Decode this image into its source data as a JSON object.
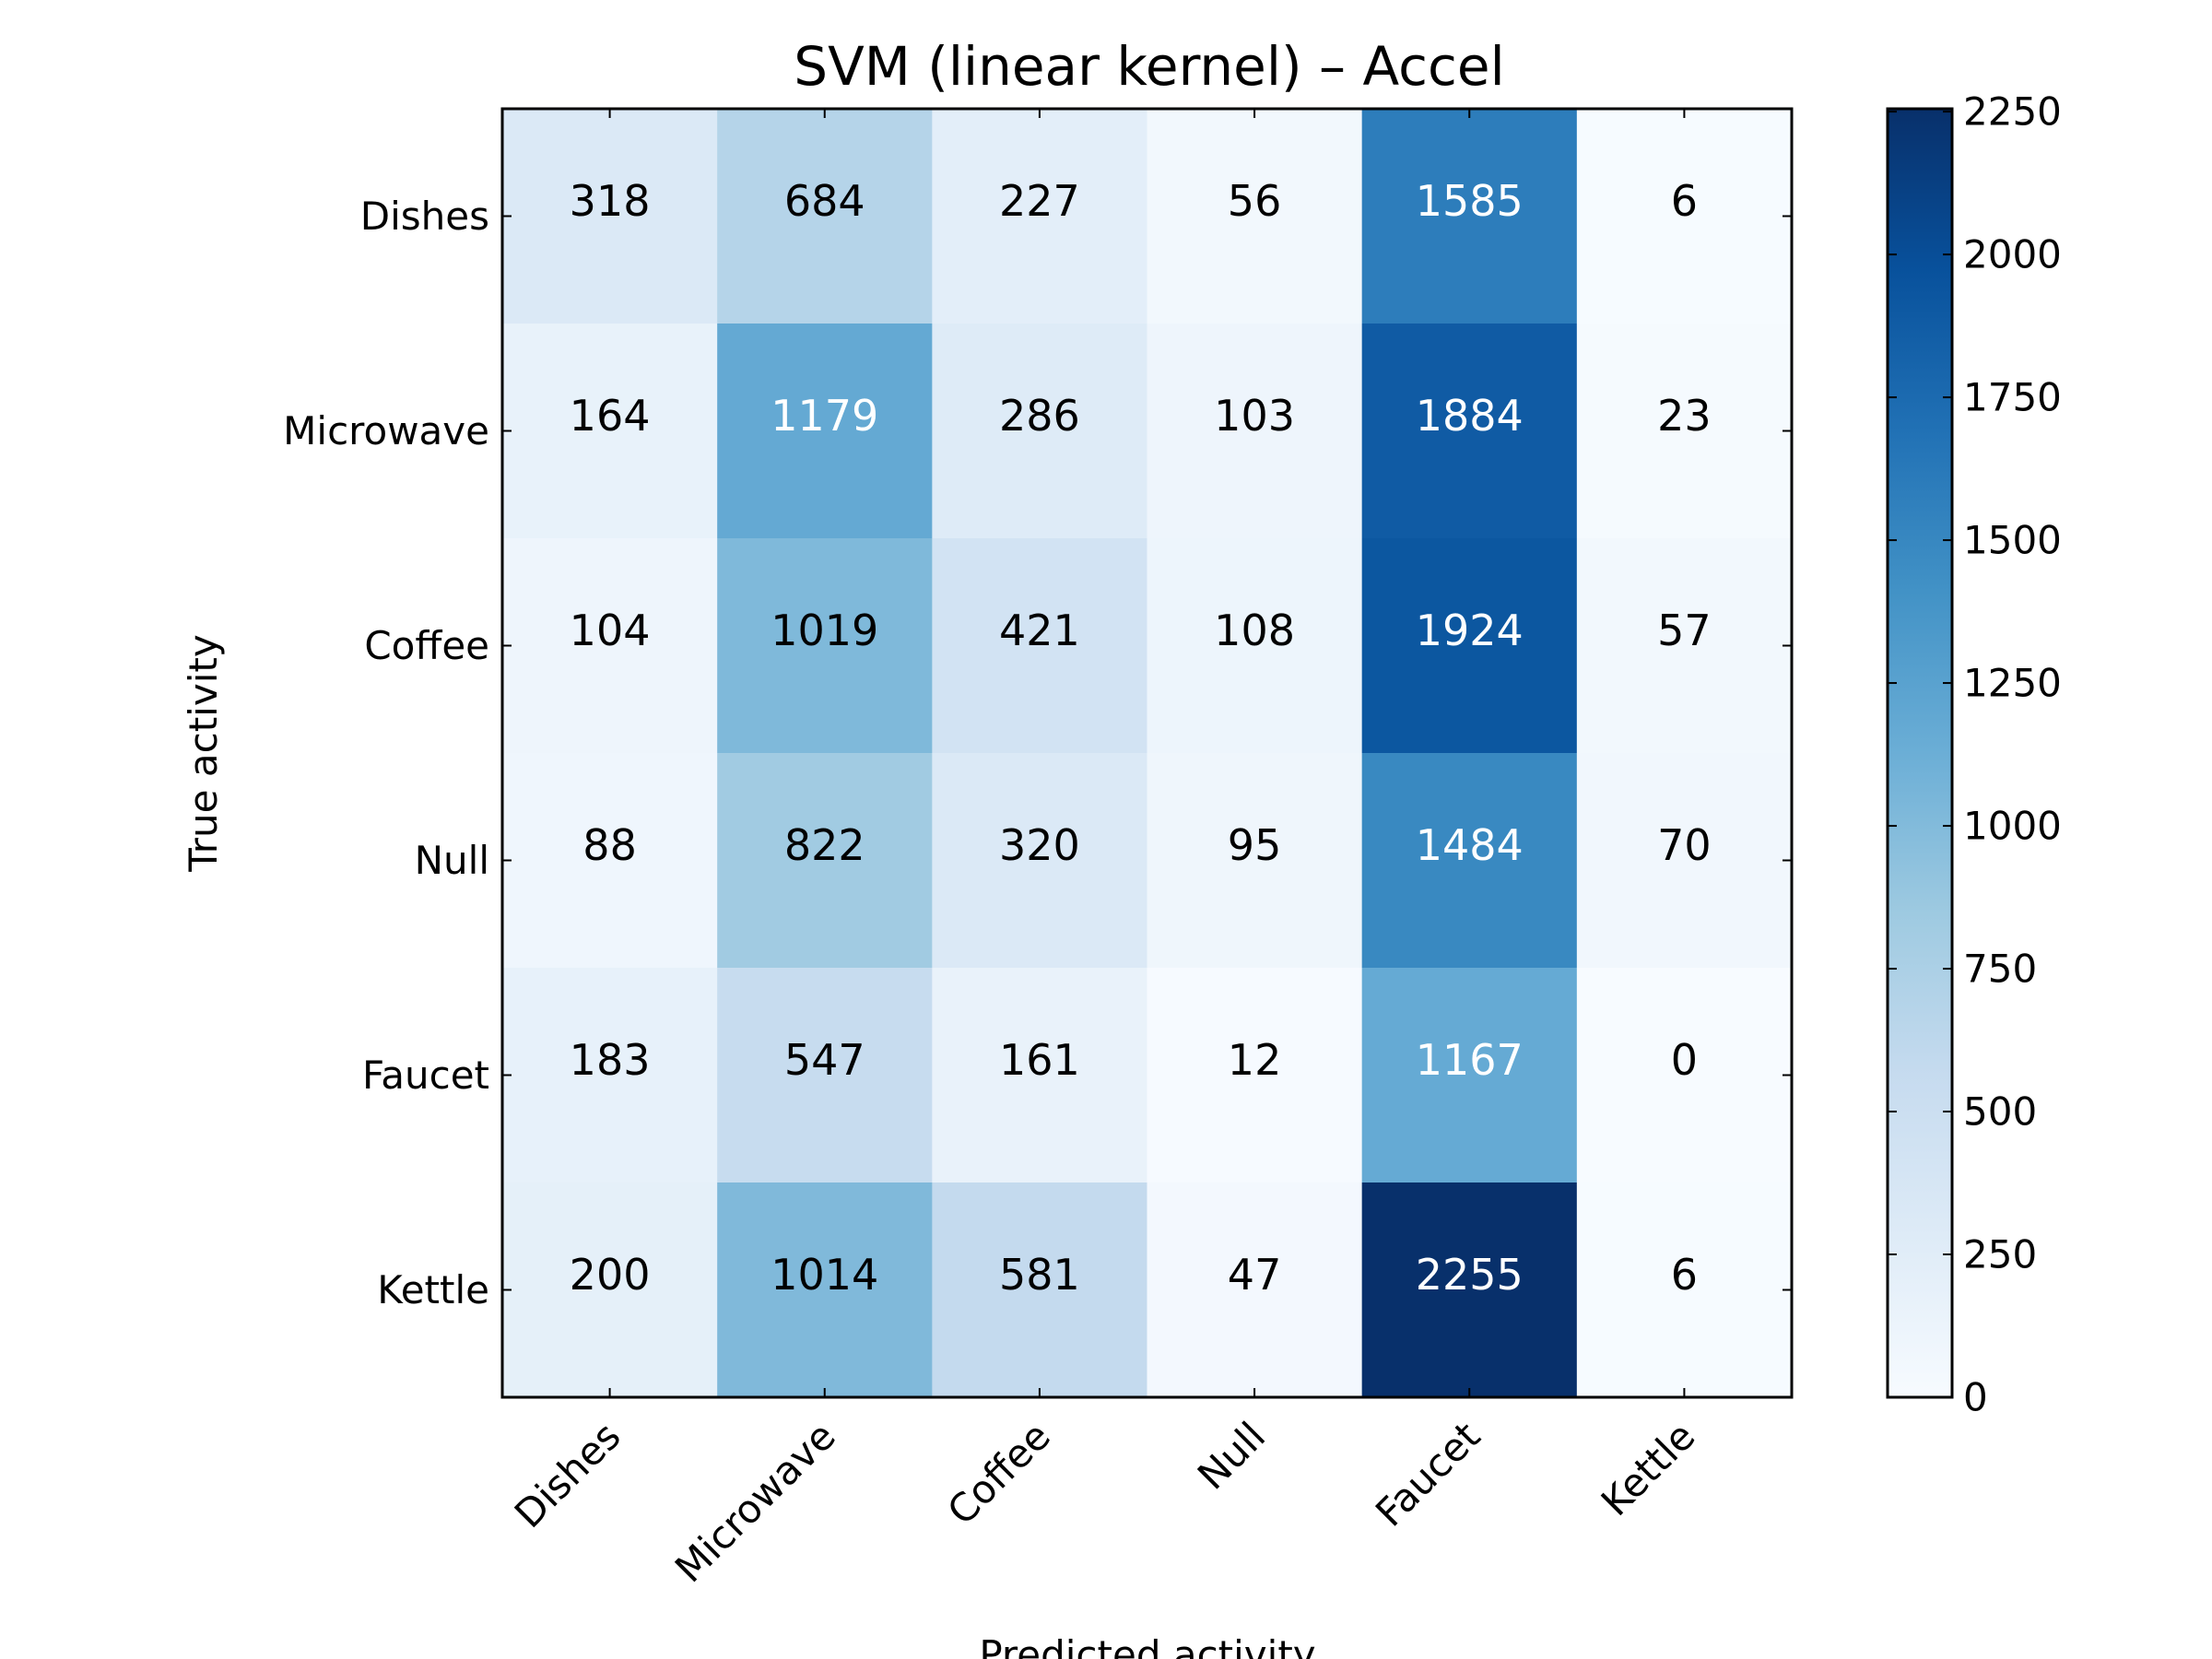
{
  "chart_data": {
    "type": "heatmap",
    "title": "SVM (linear kernel) – Accel",
    "xlabel": "Predicted activity",
    "ylabel": "True activity",
    "x_categories": [
      "Dishes",
      "Microwave",
      "Coffee",
      "Null",
      "Faucet",
      "Kettle"
    ],
    "y_categories": [
      "Dishes",
      "Microwave",
      "Coffee",
      "Null",
      "Faucet",
      "Kettle"
    ],
    "values": [
      [
        318,
        684,
        227,
        56,
        1585,
        6
      ],
      [
        164,
        1179,
        286,
        103,
        1884,
        23
      ],
      [
        104,
        1019,
        421,
        108,
        1924,
        57
      ],
      [
        88,
        822,
        320,
        95,
        1484,
        70
      ],
      [
        183,
        547,
        161,
        12,
        1167,
        0
      ],
      [
        200,
        1014,
        581,
        47,
        2255,
        6
      ]
    ],
    "colorbar": {
      "colormap": "Blues",
      "min": 0,
      "max": 2255,
      "ticks": [
        "0",
        "250",
        "500",
        "750",
        "1000",
        "1250",
        "1500",
        "1750",
        "2000",
        "2250"
      ]
    },
    "cell_text_colors": {
      "dark_bg": "#ffffff",
      "light_bg": "#000000"
    },
    "legend": "none",
    "grid": false
  }
}
